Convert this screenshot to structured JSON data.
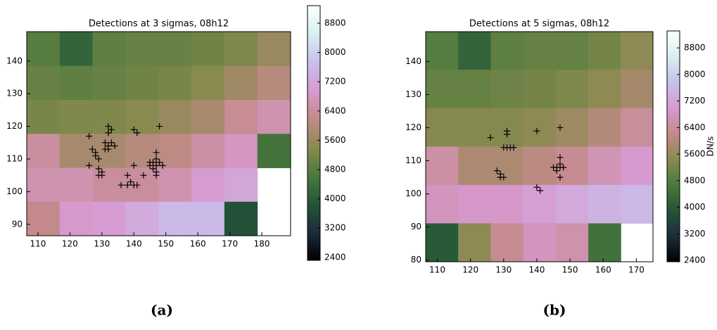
{
  "chart_data": [
    {
      "type": "heatmap",
      "title": "Detections at 3 sigmas, 08h12",
      "caption": "(a)",
      "xlim": [
        106.5,
        189
      ],
      "ylim": [
        86.5,
        149
      ],
      "xticks": [
        110,
        120,
        130,
        140,
        150,
        160,
        170,
        180
      ],
      "yticks": [
        90,
        100,
        110,
        120,
        130,
        140
      ],
      "xedges": [
        106.5,
        116.8,
        127.1,
        137.4,
        147.7,
        158,
        168.3,
        178.6,
        189
      ],
      "yedges": [
        149,
        138.5,
        128.1,
        117.7,
        107.3,
        96.9,
        86.5
      ],
      "values": [
        [
          4800,
          4200,
          4900,
          5000,
          5000,
          5100,
          5300,
          5600
        ],
        [
          5000,
          4900,
          5000,
          5100,
          5200,
          5400,
          5700,
          6000
        ],
        [
          5200,
          5300,
          5300,
          5400,
          5600,
          5800,
          6300,
          6600
        ],
        [
          6400,
          5800,
          5800,
          6000,
          6100,
          6500,
          6800,
          4500
        ],
        [
          6600,
          6600,
          6400,
          6400,
          6600,
          7000,
          7200,
          null
        ],
        [
          6200,
          6900,
          7000,
          7300,
          7600,
          7600,
          3800,
          null
        ]
      ],
      "clim": [
        2320,
        9280
      ],
      "cticks": [
        2400,
        3200,
        4000,
        4800,
        5600,
        6400,
        7200,
        8000,
        8800
      ],
      "colormap": [
        "#000000",
        "#1c2c3c",
        "#245538",
        "#4a7a3c",
        "#8a8a50",
        "#c48a8a",
        "#d79ad0",
        "#c8c0ec",
        "#d6f0ee",
        "#ffffff"
      ],
      "points": {
        "marker": "+",
        "color": "#000000",
        "x": [
          126,
          126,
          127,
          128,
          128,
          129,
          129,
          130,
          130,
          129,
          132,
          133,
          132,
          131,
          132,
          133,
          131,
          132,
          134,
          140,
          141,
          140,
          139,
          140,
          141,
          136,
          138,
          138,
          143,
          145,
          145,
          146,
          146,
          147,
          147,
          147,
          148,
          149,
          147,
          147,
          148
        ],
        "y": [
          117,
          108,
          113,
          112,
          111,
          110,
          107,
          106,
          105,
          105,
          120,
          119,
          118,
          115,
          114,
          115,
          113,
          113,
          114,
          119,
          118,
          108,
          103,
          102,
          102,
          102,
          102,
          105,
          105,
          109,
          108,
          107,
          109,
          110,
          112,
          108,
          109,
          108,
          106,
          105,
          120
        ]
      }
    },
    {
      "type": "heatmap",
      "title": "Detections at 5 sigmas, 08h12",
      "caption": "(b)",
      "clabel": "DN/s",
      "xlim": [
        106.5,
        175
      ],
      "ylim": [
        79.5,
        149
      ],
      "xticks": [
        110,
        120,
        130,
        140,
        150,
        160,
        170
      ],
      "yticks": [
        80,
        90,
        100,
        110,
        120,
        130,
        140
      ],
      "xedges": [
        106.5,
        116.3,
        126.1,
        135.9,
        145.7,
        155.5,
        165.3,
        175
      ],
      "yedges": [
        149,
        137.5,
        125.9,
        114.3,
        102.7,
        91.1,
        79.5
      ],
      "values": [
        [
          4800,
          4200,
          4900,
          5000,
          5000,
          5200,
          5500
        ],
        [
          5000,
          5000,
          5100,
          5200,
          5300,
          5500,
          5800
        ],
        [
          5400,
          5400,
          5400,
          5500,
          5700,
          6000,
          6400
        ],
        [
          6500,
          5900,
          5900,
          6100,
          6300,
          6700,
          7000
        ],
        [
          6800,
          6900,
          6900,
          7100,
          7300,
          7500,
          7600
        ],
        [
          4000,
          5500,
          6300,
          6800,
          6600,
          4500,
          null
        ]
      ],
      "clim": [
        2360,
        9310
      ],
      "cticks": [
        2400,
        3200,
        4000,
        4800,
        5600,
        6400,
        7200,
        8000,
        8800
      ],
      "colormap": [
        "#000000",
        "#1c2c3c",
        "#245538",
        "#4a7a3c",
        "#8a8a50",
        "#c48a8a",
        "#d79ad0",
        "#c8c0ec",
        "#d6f0ee",
        "#ffffff"
      ],
      "points": {
        "marker": "+",
        "color": "#000000",
        "x": [
          126,
          131,
          131,
          131,
          132,
          133,
          130,
          128,
          129,
          129,
          130,
          140,
          140,
          141,
          146,
          147,
          147,
          147,
          146,
          147,
          148,
          147,
          145
        ],
        "y": [
          117,
          119,
          118,
          114,
          114,
          114,
          114,
          107,
          106,
          105,
          105,
          119,
          102,
          101,
          108,
          108,
          111,
          109,
          107,
          105,
          108,
          120,
          108
        ]
      }
    }
  ]
}
